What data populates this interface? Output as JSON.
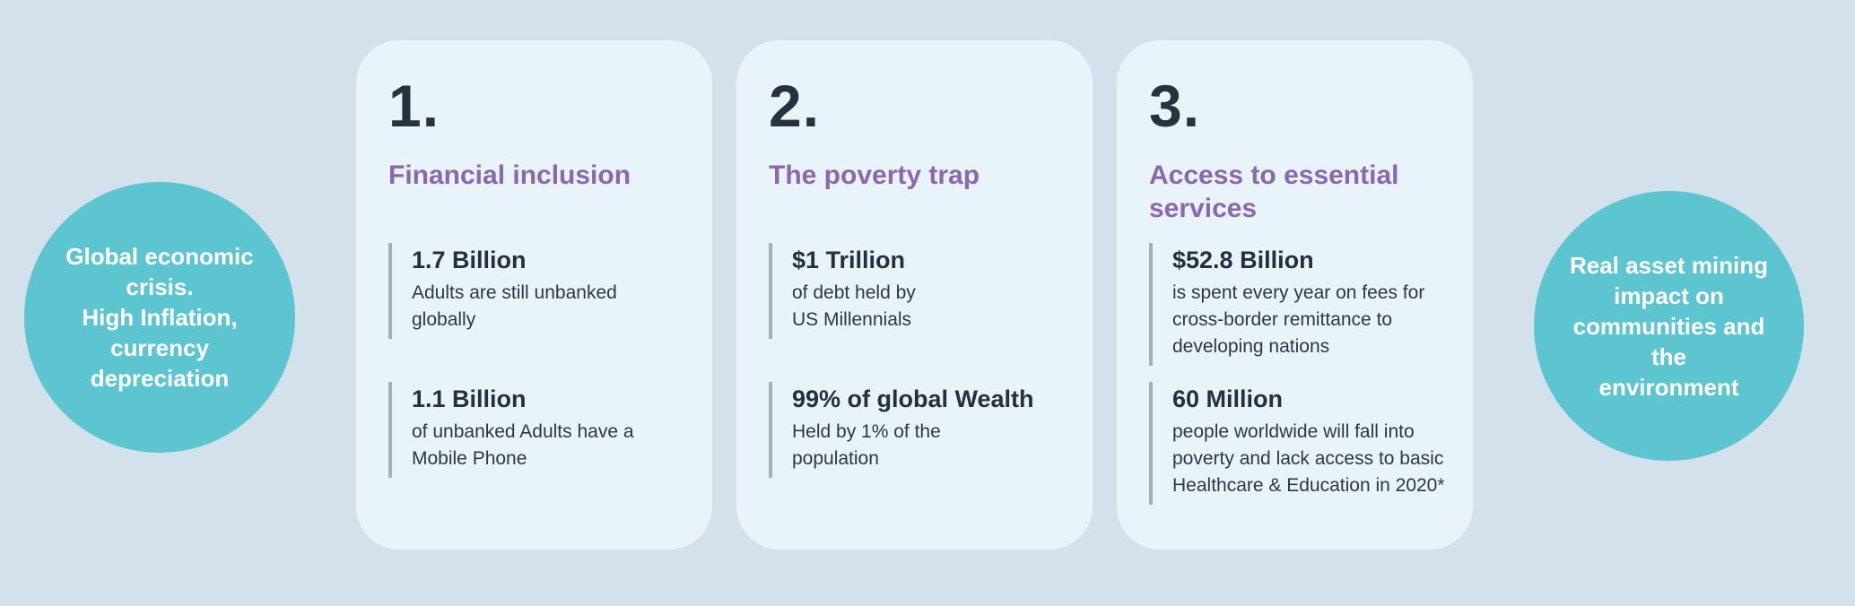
{
  "colors": {
    "page_background": "#d3e1ec",
    "card_background": "#e9f3fa",
    "circle_teal": "#5cc5d0",
    "heading_navy": "#25333e",
    "title_purple": "#8a67af",
    "stat_rule_gray": "#a6afb6"
  },
  "left_circle": {
    "text": "Global economic\ncrisis.\nHigh Inflation,\ncurrency\ndepreciation"
  },
  "right_circle": {
    "text": "Real asset  mining\nimpact on\ncommunities and the\nenvironment"
  },
  "cards": [
    {
      "number": "1.",
      "title": "Financial inclusion",
      "stats": [
        {
          "value": "1.7 Billion",
          "desc": "Adults are still unbanked\nglobally"
        },
        {
          "value": "1.1 Billion",
          "desc": "of unbanked Adults have a\nMobile Phone"
        }
      ]
    },
    {
      "number": "2.",
      "title": "The poverty trap",
      "stats": [
        {
          "value": "$1 Trillion",
          "desc": "of debt held by\nUS Millennials"
        },
        {
          "value": "99% of global Wealth",
          "desc": "Held by 1% of the\npopulation"
        }
      ]
    },
    {
      "number": "3.",
      "title": "Access to essential\nservices",
      "stats": [
        {
          "value": "$52.8 Billion",
          "desc": "is spent every year on fees for\ncross-border remittance to\ndeveloping nations"
        },
        {
          "value": "60 Million",
          "desc": "people worldwide will fall into\npoverty and lack access to basic\nHealthcare & Education in 2020*"
        }
      ]
    }
  ]
}
